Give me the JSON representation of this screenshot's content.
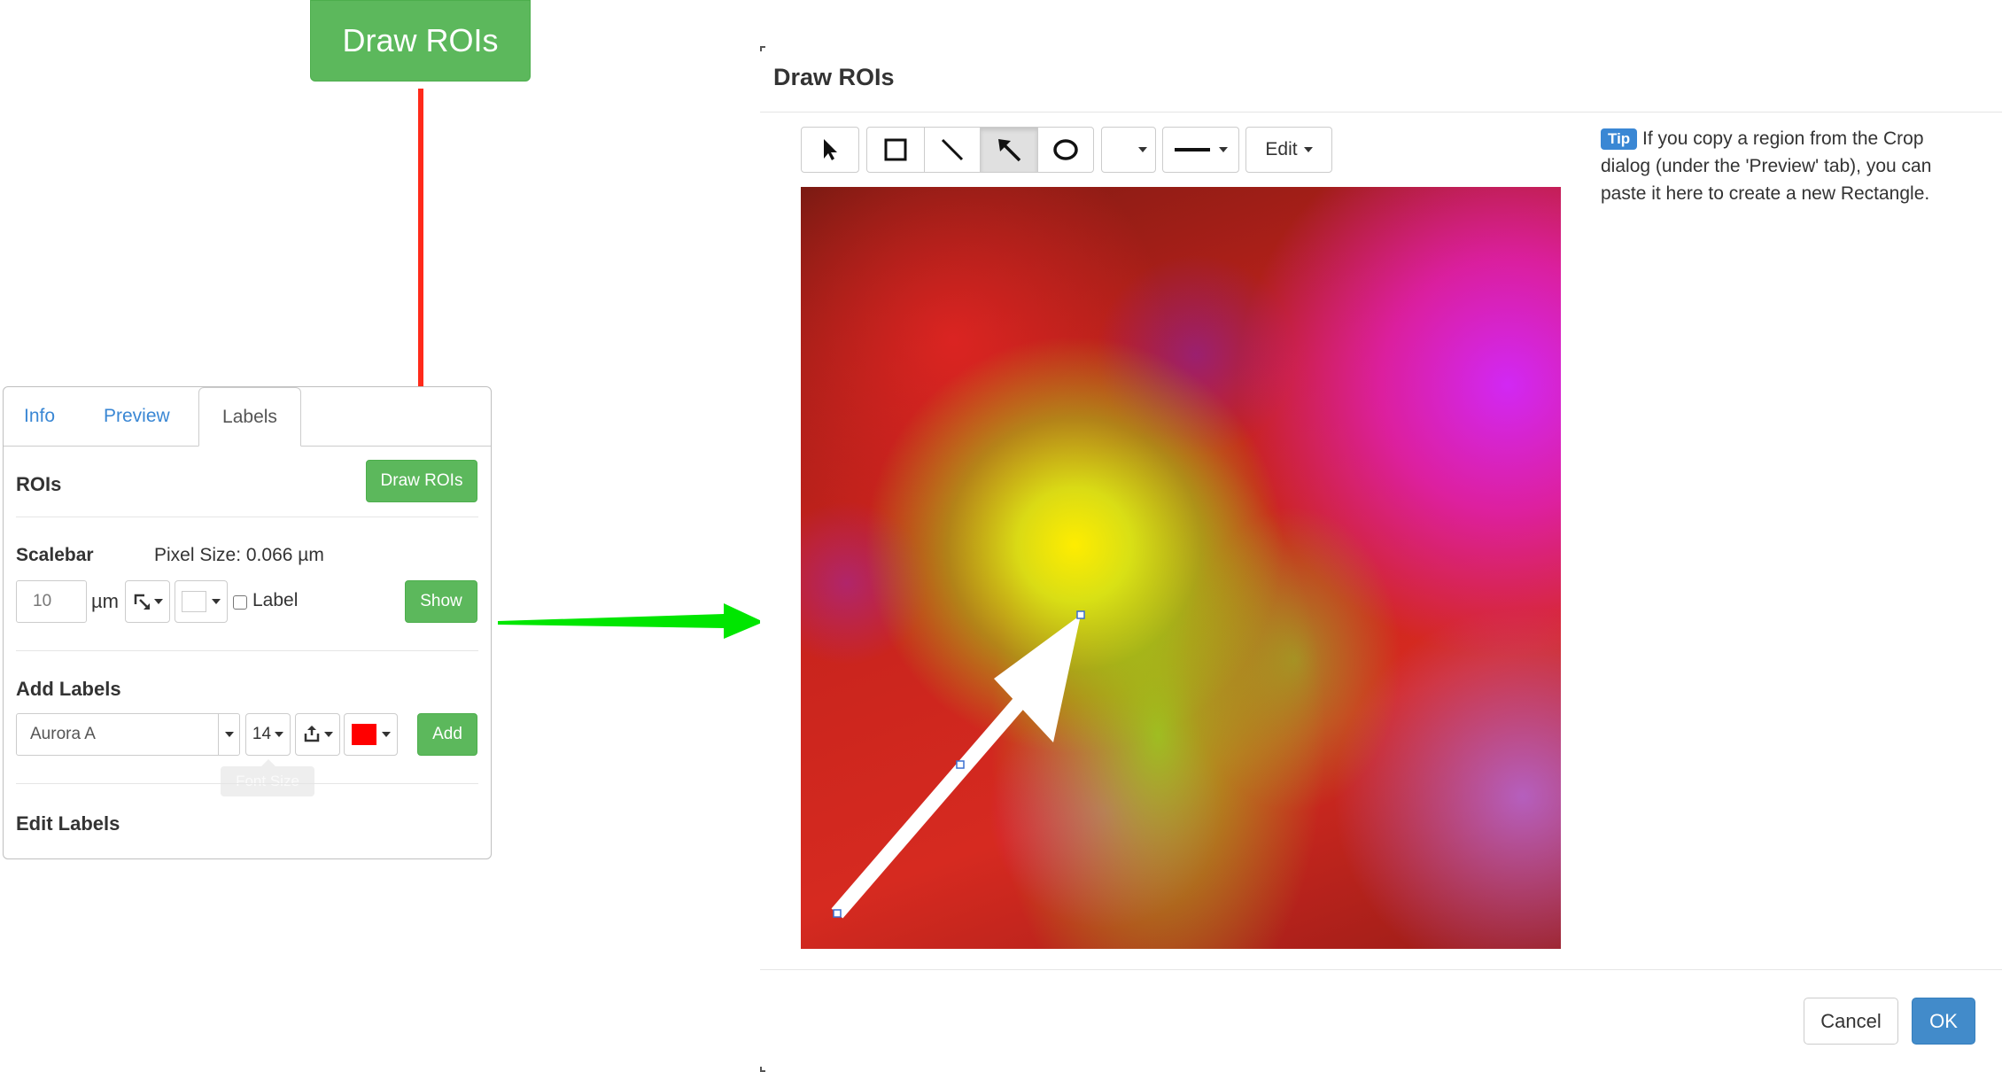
{
  "top_button": {
    "label": "Draw ROIs"
  },
  "side_panel": {
    "tabs": [
      {
        "label": "Info"
      },
      {
        "label": "Preview"
      },
      {
        "label": "Labels"
      }
    ],
    "active_tab": "Labels",
    "rois": {
      "title": "ROIs",
      "button": "Draw ROIs"
    },
    "scalebar": {
      "title": "Scalebar",
      "pixel_size": "Pixel Size: 0.066 µm",
      "length_value": "10",
      "unit": "µm",
      "label_checkbox": "Label",
      "show_button": "Show"
    },
    "add_labels": {
      "title": "Add Labels",
      "text_value": "Aurora A",
      "font_size": "14",
      "tooltip": "Font Size",
      "add_button": "Add",
      "color": "#ff0000"
    },
    "edit_labels": {
      "title": "Edit Labels"
    }
  },
  "dialog": {
    "title": "Draw ROIs",
    "toolbar": {
      "edit_label": "Edit",
      "active_tool": "arrow"
    },
    "tip": {
      "badge": "Tip",
      "text": "If you copy a region from the Crop dialog (under the 'Preview' tab), you can paste it here to create a new Rectangle."
    },
    "footer": {
      "cancel": "Cancel",
      "ok": "OK"
    }
  },
  "colors": {
    "green_button": "#5cb85c",
    "ok_blue": "#428bca",
    "red_arrow": "#ff2a1a",
    "green_arrow": "#00e600",
    "tab_link": "#3a87d4"
  }
}
